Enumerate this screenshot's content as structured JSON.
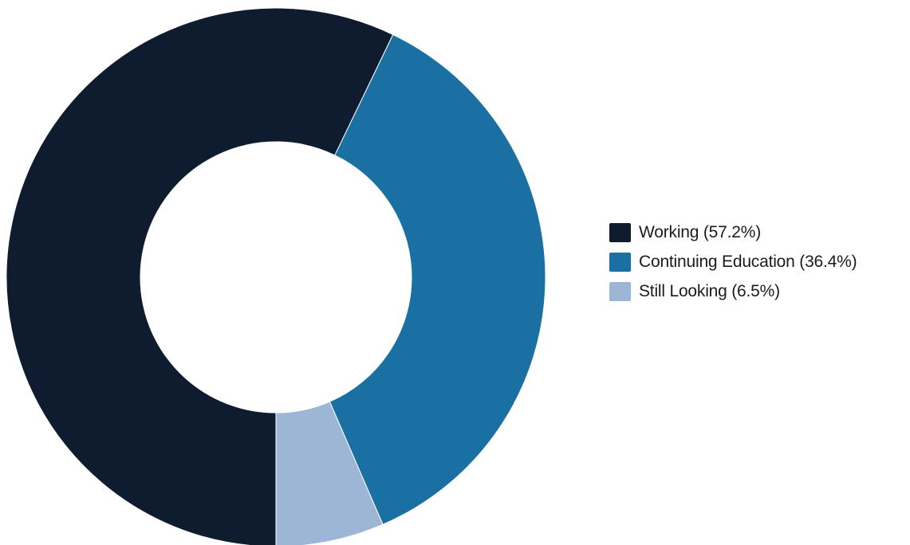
{
  "chart_data": {
    "type": "pie",
    "donut": true,
    "legend_position": "right",
    "slices": [
      {
        "label": "Working (57.2%)",
        "value": 57.2,
        "color": "#0f1c30"
      },
      {
        "label": "Continuing Education (36.4%)",
        "value": 36.4,
        "color": "#1a70a2"
      },
      {
        "label": "Still Looking (6.5%)",
        "value": 6.5,
        "color": "#9eb6d5"
      }
    ]
  }
}
